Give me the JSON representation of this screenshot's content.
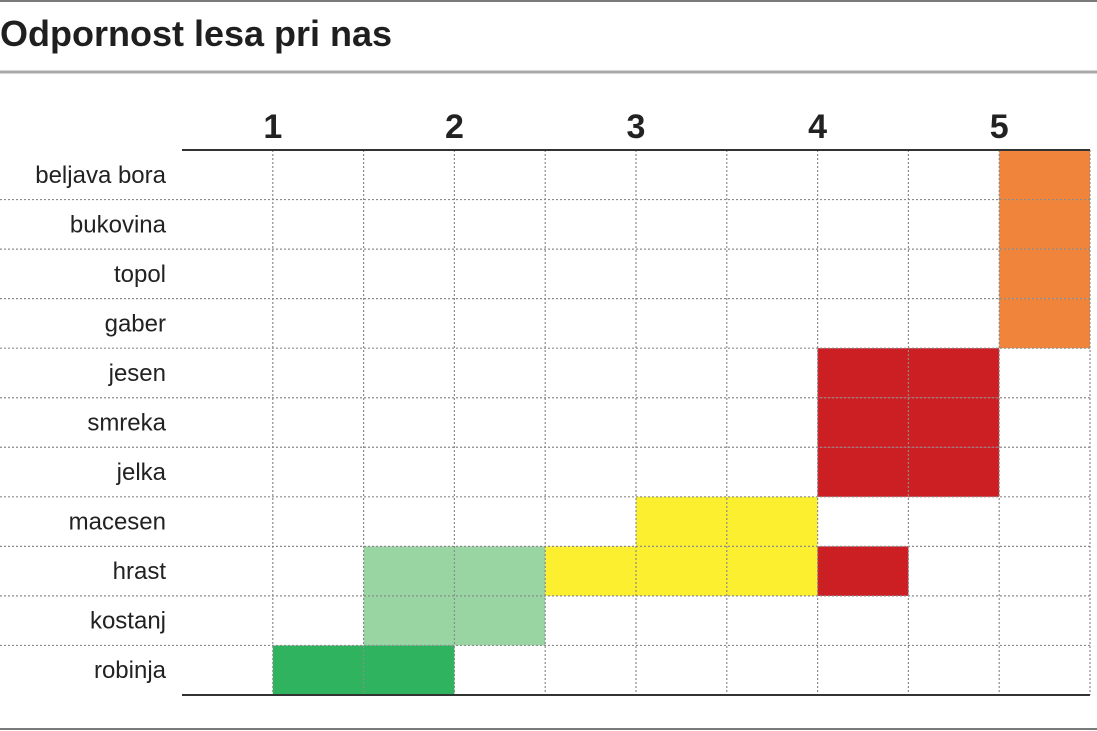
{
  "chart_data": {
    "type": "heatmap",
    "title": "Odpornost lesa pri nas",
    "x_ticks": [
      "1",
      "2",
      "3",
      "4",
      "5"
    ],
    "categories": [
      "beljava bora",
      "bukovina",
      "topol",
      "gaber",
      "jesen",
      "smreka",
      "jelka",
      "macesen",
      "hrast",
      "kostanj",
      "robinja"
    ],
    "xlim": [
      0.5,
      5.5
    ],
    "grid": true,
    "ranges": [
      {
        "category": "beljava bora",
        "from": 5.0,
        "to": 5.5,
        "color": "#f0843a"
      },
      {
        "category": "bukovina",
        "from": 5.0,
        "to": 5.5,
        "color": "#f0843a"
      },
      {
        "category": "topol",
        "from": 5.0,
        "to": 5.5,
        "color": "#f0843a"
      },
      {
        "category": "gaber",
        "from": 5.0,
        "to": 5.5,
        "color": "#f0843a"
      },
      {
        "category": "jesen",
        "from": 4.0,
        "to": 5.0,
        "color": "#cc1f24"
      },
      {
        "category": "smreka",
        "from": 4.0,
        "to": 5.0,
        "color": "#cc1f24"
      },
      {
        "category": "jelka",
        "from": 4.0,
        "to": 5.0,
        "color": "#cc1f24"
      },
      {
        "category": "macesen",
        "from": 3.0,
        "to": 4.0,
        "color": "#fbef2f"
      },
      {
        "category": "hrast",
        "from": 2.5,
        "to": 4.0,
        "color": "#fbef2f"
      },
      {
        "category": "hrast",
        "from": 4.0,
        "to": 4.5,
        "color": "#cc1f24"
      },
      {
        "category": "hrast",
        "from": 1.5,
        "to": 2.5,
        "color": "#98d5a2"
      },
      {
        "category": "kostanj",
        "from": 1.5,
        "to": 2.5,
        "color": "#98d5a2"
      },
      {
        "category": "robinja",
        "from": 1.0,
        "to": 2.0,
        "color": "#2fb35e"
      }
    ]
  }
}
